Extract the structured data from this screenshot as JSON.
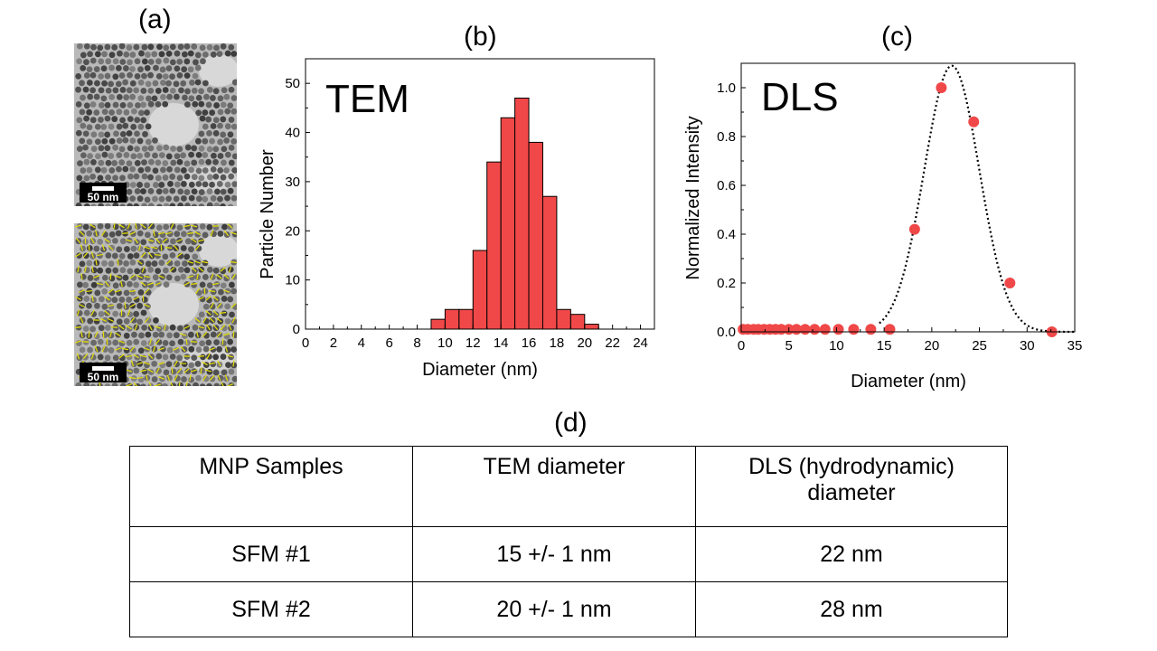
{
  "panels": {
    "a": "(a)",
    "b": "(b)",
    "c": "(c)",
    "d": "(d)"
  },
  "tem_images": {
    "scale_label": "50 nm"
  },
  "colors": {
    "bar_fill": "#f04848",
    "marker": "#f04848",
    "axis": "#000000"
  },
  "chart_data": [
    {
      "type": "bar",
      "title": "TEM",
      "xlabel": "Diameter (nm)",
      "ylabel": "Particle Number",
      "xlim": [
        0,
        25
      ],
      "ylim": [
        0,
        55
      ],
      "xticks": [
        0,
        2,
        4,
        6,
        8,
        10,
        12,
        14,
        16,
        18,
        20,
        22,
        24
      ],
      "yticks": [
        0,
        10,
        20,
        30,
        40,
        50
      ],
      "bin_width": 1,
      "bin_starts": [
        9,
        10,
        11,
        12,
        13,
        14,
        15,
        16,
        17,
        18,
        19,
        20
      ],
      "values": [
        2,
        4,
        4,
        16,
        34,
        43,
        47,
        38,
        27,
        4,
        3,
        1
      ]
    },
    {
      "type": "scatter",
      "title": "DLS",
      "xlabel": "Diameter (nm)",
      "ylabel": "Normalized Intensity",
      "xlim": [
        0,
        35
      ],
      "ylim": [
        0,
        1.1
      ],
      "xticks": [
        0,
        5,
        10,
        15,
        20,
        25,
        30,
        35
      ],
      "yticks": [
        "0.0",
        "0.2",
        "0.4",
        "0.6",
        "0.8",
        "1.0"
      ],
      "series": [
        {
          "name": "data",
          "x": [
            0.2,
            0.7,
            1.3,
            1.8,
            2.4,
            3.0,
            3.6,
            4.2,
            5.0,
            5.8,
            6.7,
            7.7,
            8.8,
            10.2,
            11.8,
            13.6,
            15.6,
            18.2,
            21.0,
            24.4,
            28.2,
            32.6
          ],
          "y": [
            0.01,
            0.01,
            0.01,
            0.01,
            0.01,
            0.01,
            0.01,
            0.01,
            0.01,
            0.01,
            0.01,
            0.01,
            0.01,
            0.01,
            0.01,
            0.01,
            0.01,
            0.42,
            1.0,
            0.86,
            0.2,
            0.0
          ]
        },
        {
          "name": "fit",
          "style": "dotted",
          "center": 22.1,
          "sigma": 2.9,
          "amplitude": 1.09
        }
      ]
    }
  ],
  "table": {
    "headers": [
      "MNP Samples",
      "TEM diameter",
      "DLS (hydrodynamic) diameter"
    ],
    "rows": [
      [
        "SFM #1",
        "15 +/- 1 nm",
        "22 nm"
      ],
      [
        "SFM #2",
        "20 +/- 1 nm",
        "28 nm"
      ]
    ]
  }
}
